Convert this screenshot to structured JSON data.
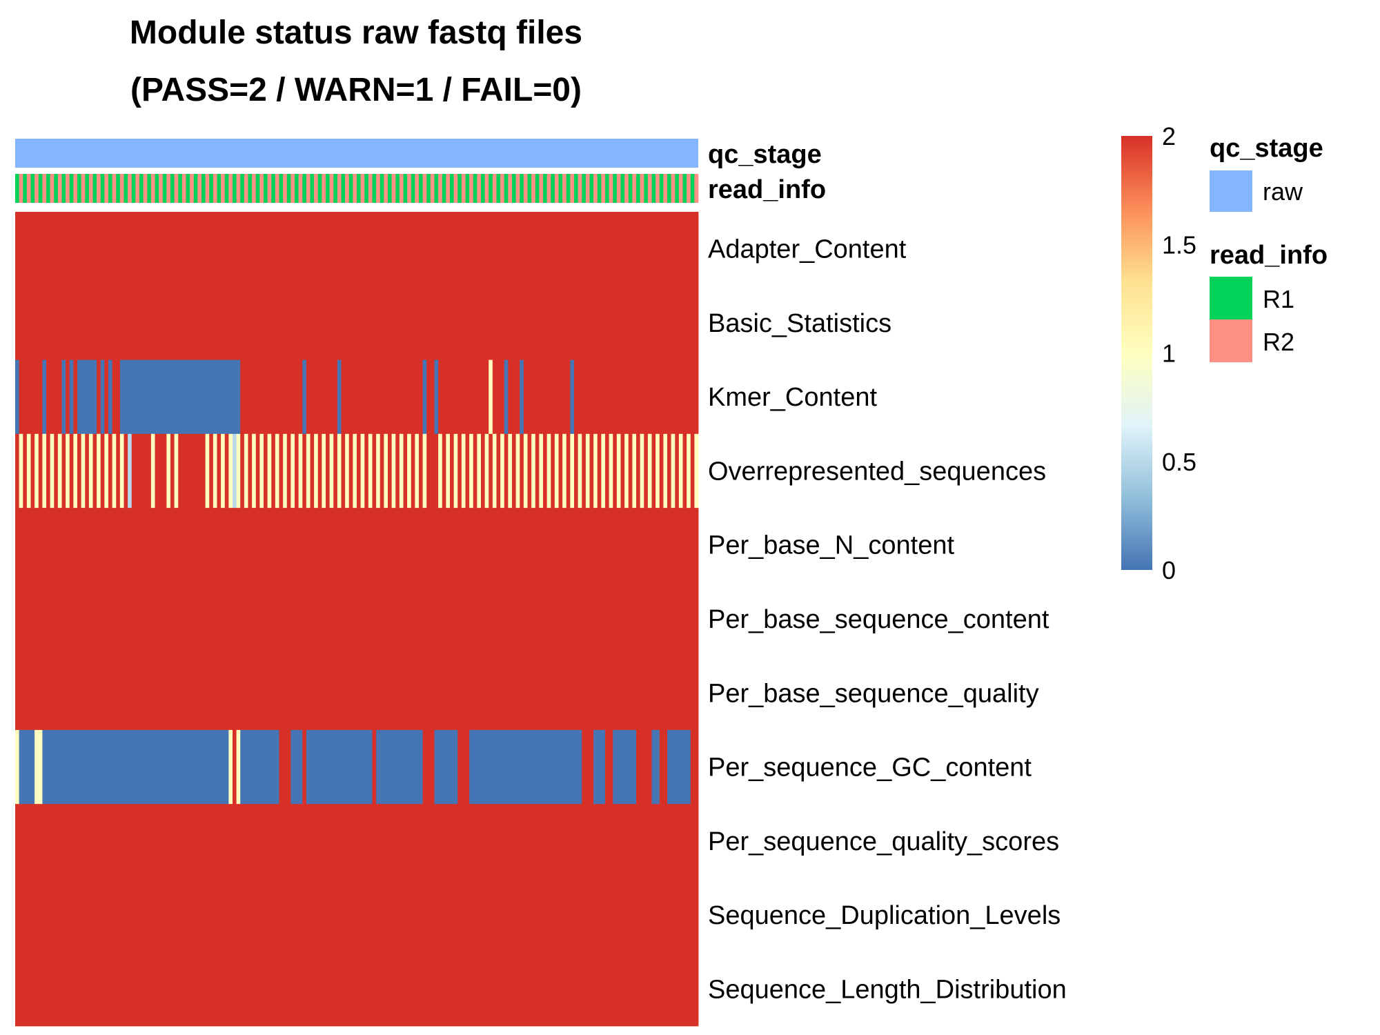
{
  "chart_data": {
    "type": "heatmap",
    "title_lines": [
      "Module status raw fastq files",
      "(PASS=2 / WARN=1 / FAIL=0)"
    ],
    "rows": [
      "Adapter_Content",
      "Basic_Statistics",
      "Kmer_Content",
      "Overrepresented_sequences",
      "Per_base_N_content",
      "Per_base_sequence_content",
      "Per_base_sequence_quality",
      "Per_sequence_GC_content",
      "Per_sequence_quality_scores",
      "Sequence_Duplication_Levels",
      "Sequence_Length_Distribution"
    ],
    "n_samples": 176,
    "default_value": 2,
    "annotations": [
      {
        "name": "qc_stage",
        "pattern": "constant",
        "value": "raw"
      },
      {
        "name": "read_info",
        "pattern": "alternating",
        "values": [
          "R1",
          "R2"
        ]
      }
    ],
    "exceptions": [
      {
        "row": "Kmer_Content",
        "ranges": [
          [
            0,
            0,
            0
          ],
          [
            7,
            7,
            0
          ],
          [
            12,
            12,
            0
          ],
          [
            14,
            14,
            0
          ],
          [
            16,
            17,
            0
          ],
          [
            18,
            20,
            0
          ],
          [
            22,
            22,
            0
          ],
          [
            24,
            24,
            0
          ],
          [
            27,
            57,
            0
          ],
          [
            74,
            74,
            0
          ],
          [
            83,
            83,
            0
          ],
          [
            105,
            105,
            0
          ],
          [
            108,
            108,
            0
          ],
          [
            122,
            122,
            1
          ],
          [
            126,
            126,
            0
          ],
          [
            130,
            130,
            0
          ],
          [
            143,
            143,
            0
          ]
        ]
      },
      {
        "row": "Overrepresented_sequences",
        "pattern": "alternating",
        "values": [
          2,
          1
        ],
        "ranges": [
          [
            29,
            29,
            0.5
          ],
          [
            31,
            34,
            2
          ],
          [
            37,
            37,
            2
          ],
          [
            42,
            48,
            2
          ],
          [
            54,
            54,
            2
          ],
          [
            56,
            56,
            0.5
          ],
          [
            107,
            107,
            2
          ]
        ]
      },
      {
        "row": "Per_sequence_GC_content",
        "ranges": [
          [
            0,
            0,
            1
          ],
          [
            1,
            4,
            0
          ],
          [
            5,
            6,
            1
          ],
          [
            7,
            54,
            0
          ],
          [
            55,
            55,
            1
          ],
          [
            57,
            57,
            1
          ],
          [
            58,
            67,
            0
          ],
          [
            71,
            73,
            0
          ],
          [
            75,
            91,
            0
          ],
          [
            93,
            104,
            0
          ],
          [
            108,
            113,
            0
          ],
          [
            117,
            145,
            0
          ],
          [
            149,
            151,
            0
          ],
          [
            154,
            159,
            0
          ],
          [
            164,
            165,
            0
          ],
          [
            168,
            173,
            0
          ]
        ]
      }
    ],
    "colorbar": {
      "min": 0,
      "max": 2,
      "ticks": [
        "0",
        "0.5",
        "1",
        "1.5",
        "2"
      ],
      "stops": [
        "#4575b4",
        "#91bfdb",
        "#e0f3f8",
        "#ffffbf",
        "#fee090",
        "#fc8d59",
        "#d73027"
      ]
    },
    "legends": [
      {
        "title": "qc_stage",
        "items": [
          {
            "label": "raw",
            "color": "#84b5ff"
          }
        ]
      },
      {
        "title": "read_info",
        "items": [
          {
            "label": "R1",
            "color": "#00d25a"
          },
          {
            "label": "R2",
            "color": "#ff9184"
          }
        ]
      }
    ]
  }
}
